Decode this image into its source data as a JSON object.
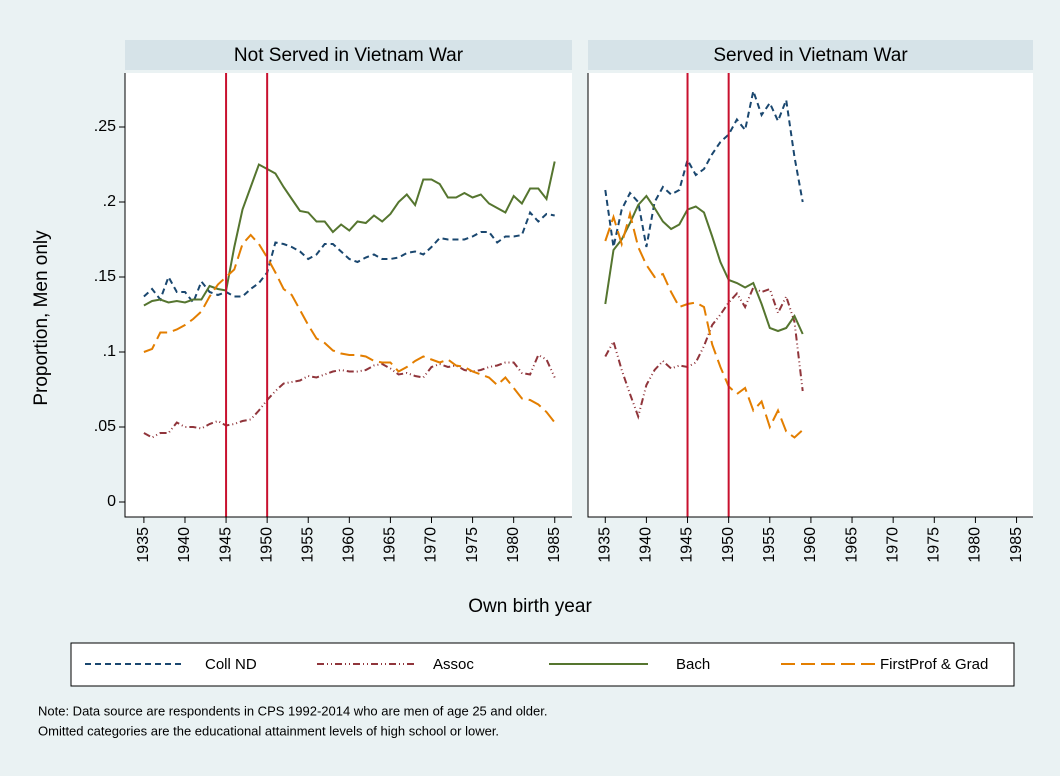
{
  "y_label": "Proportion, Men only",
  "x_label": "Own birth year",
  "note": [
    "Note: Data source are respondents in CPS 1992-2014 who are men of age 25 and older.",
    "Omitted categories are the educational attainment levels of high school or lower."
  ],
  "chart_data": [
    {
      "type": "line",
      "title": "Not Served in Vietnam War",
      "x": [
        1935,
        1936,
        1937,
        1938,
        1939,
        1940,
        1941,
        1942,
        1943,
        1944,
        1945,
        1946,
        1947,
        1948,
        1949,
        1950,
        1951,
        1952,
        1953,
        1954,
        1955,
        1956,
        1957,
        1958,
        1959,
        1960,
        1961,
        1962,
        1963,
        1964,
        1965,
        1966,
        1967,
        1968,
        1969,
        1970,
        1971,
        1972,
        1973,
        1974,
        1975,
        1976,
        1977,
        1978,
        1979,
        1980,
        1981,
        1982,
        1983,
        1984,
        1985
      ],
      "series": [
        {
          "name": "Coll ND",
          "color": "#1a476f",
          "values": [
            0.137,
            0.142,
            0.135,
            0.15,
            0.14,
            0.14,
            0.133,
            0.147,
            0.14,
            0.138,
            0.14,
            0.137,
            0.137,
            0.142,
            0.146,
            0.153,
            0.173,
            0.172,
            0.17,
            0.167,
            0.162,
            0.165,
            0.172,
            0.172,
            0.167,
            0.162,
            0.16,
            0.163,
            0.165,
            0.162,
            0.162,
            0.163,
            0.166,
            0.167,
            0.165,
            0.17,
            0.176,
            0.175,
            0.175,
            0.175,
            0.177,
            0.18,
            0.18,
            0.173,
            0.177,
            0.177,
            0.178,
            0.193,
            0.187,
            0.192,
            0.191
          ]
        },
        {
          "name": "Assoc",
          "color": "#90353b",
          "values": [
            0.046,
            0.043,
            0.046,
            0.046,
            0.053,
            0.05,
            0.05,
            0.049,
            0.052,
            0.054,
            0.051,
            0.052,
            0.054,
            0.055,
            0.061,
            0.068,
            0.074,
            0.079,
            0.08,
            0.081,
            0.084,
            0.083,
            0.085,
            0.087,
            0.088,
            0.087,
            0.087,
            0.088,
            0.091,
            0.092,
            0.089,
            0.085,
            0.086,
            0.084,
            0.083,
            0.09,
            0.092,
            0.09,
            0.091,
            0.088,
            0.087,
            0.088,
            0.09,
            0.091,
            0.093,
            0.093,
            0.086,
            0.085,
            0.098,
            0.095,
            0.083
          ]
        },
        {
          "name": "Bach",
          "color": "#55752f",
          "values": [
            0.131,
            0.134,
            0.135,
            0.133,
            0.134,
            0.133,
            0.135,
            0.135,
            0.144,
            0.142,
            0.141,
            0.17,
            0.195,
            0.21,
            0.225,
            0.222,
            0.219,
            0.21,
            0.202,
            0.194,
            0.193,
            0.187,
            0.187,
            0.18,
            0.185,
            0.181,
            0.187,
            0.186,
            0.191,
            0.187,
            0.192,
            0.2,
            0.205,
            0.198,
            0.215,
            0.215,
            0.212,
            0.203,
            0.203,
            0.206,
            0.203,
            0.205,
            0.199,
            0.196,
            0.193,
            0.204,
            0.199,
            0.209,
            0.209,
            0.202,
            0.227
          ]
        },
        {
          "name": "FirstProf & Grad",
          "color": "#e37e00",
          "values": [
            0.1,
            0.102,
            0.113,
            0.113,
            0.115,
            0.118,
            0.122,
            0.127,
            0.137,
            0.145,
            0.15,
            0.155,
            0.172,
            0.178,
            0.172,
            0.163,
            0.153,
            0.142,
            0.138,
            0.128,
            0.118,
            0.109,
            0.106,
            0.101,
            0.099,
            0.098,
            0.098,
            0.097,
            0.094,
            0.093,
            0.093,
            0.087,
            0.09,
            0.094,
            0.097,
            0.095,
            0.093,
            0.095,
            0.091,
            0.09,
            0.087,
            0.085,
            0.083,
            0.078,
            0.083,
            0.076,
            0.069,
            0.068,
            0.065,
            0.06,
            0.053
          ]
        }
      ],
      "vlines": [
        1945,
        1950
      ],
      "vline_color": "#c8102e",
      "xlim": [
        1932.7,
        1987.1
      ],
      "ylim": [
        -0.01,
        0.286
      ],
      "xticks": [
        1935,
        1940,
        1945,
        1950,
        1955,
        1960,
        1965,
        1970,
        1975,
        1980,
        1985
      ],
      "yticks": [
        0,
        {
          "value": 0.05,
          "label": ".05"
        },
        {
          "value": 0.1,
          "label": ".1"
        },
        {
          "value": 0.15,
          "label": ".15"
        },
        {
          "value": 0.2,
          "label": ".2"
        },
        {
          "value": 0.25,
          "label": ".25"
        }
      ]
    },
    {
      "type": "line",
      "title": "Served in Vietnam War",
      "x": [
        1935,
        1936,
        1937,
        1938,
        1939,
        1940,
        1941,
        1942,
        1943,
        1944,
        1945,
        1946,
        1947,
        1948,
        1949,
        1950,
        1951,
        1952,
        1953,
        1954,
        1955,
        1956,
        1957,
        1958,
        1959
      ],
      "series": [
        {
          "name": "Coll ND",
          "color": "#1a476f",
          "values": [
            0.208,
            0.17,
            0.195,
            0.206,
            0.2,
            0.17,
            0.2,
            0.21,
            0.205,
            0.208,
            0.228,
            0.218,
            0.222,
            0.232,
            0.24,
            0.245,
            0.255,
            0.248,
            0.274,
            0.258,
            0.266,
            0.254,
            0.268,
            0.23,
            0.2
          ]
        },
        {
          "name": "Assoc",
          "color": "#90353b",
          "values": [
            0.097,
            0.107,
            0.088,
            0.072,
            0.057,
            0.078,
            0.088,
            0.094,
            0.089,
            0.091,
            0.09,
            0.093,
            0.104,
            0.118,
            0.125,
            0.133,
            0.139,
            0.13,
            0.143,
            0.14,
            0.142,
            0.126,
            0.137,
            0.12,
            0.074
          ]
        },
        {
          "name": "Bach",
          "color": "#55752f",
          "values": [
            0.132,
            0.168,
            0.175,
            0.186,
            0.198,
            0.204,
            0.196,
            0.187,
            0.182,
            0.185,
            0.195,
            0.197,
            0.193,
            0.177,
            0.16,
            0.148,
            0.146,
            0.143,
            0.146,
            0.132,
            0.116,
            0.114,
            0.116,
            0.124,
            0.112
          ]
        },
        {
          "name": "FirstProf & Grad",
          "color": "#e37e00",
          "values": [
            0.174,
            0.19,
            0.172,
            0.192,
            0.17,
            0.158,
            0.15,
            0.152,
            0.14,
            0.13,
            0.132,
            0.133,
            0.13,
            0.105,
            0.09,
            0.077,
            0.072,
            0.076,
            0.061,
            0.067,
            0.05,
            0.061,
            0.047,
            0.043,
            0.048
          ]
        }
      ],
      "vlines": [
        1945,
        1950
      ],
      "vline_color": "#c8102e",
      "xlim": [
        1932.9,
        1987.0
      ],
      "ylim": [
        -0.01,
        0.286
      ],
      "xticks": [
        1935,
        1940,
        1945,
        1950,
        1955,
        1960,
        1965,
        1970,
        1975,
        1980,
        1985
      ]
    }
  ]
}
